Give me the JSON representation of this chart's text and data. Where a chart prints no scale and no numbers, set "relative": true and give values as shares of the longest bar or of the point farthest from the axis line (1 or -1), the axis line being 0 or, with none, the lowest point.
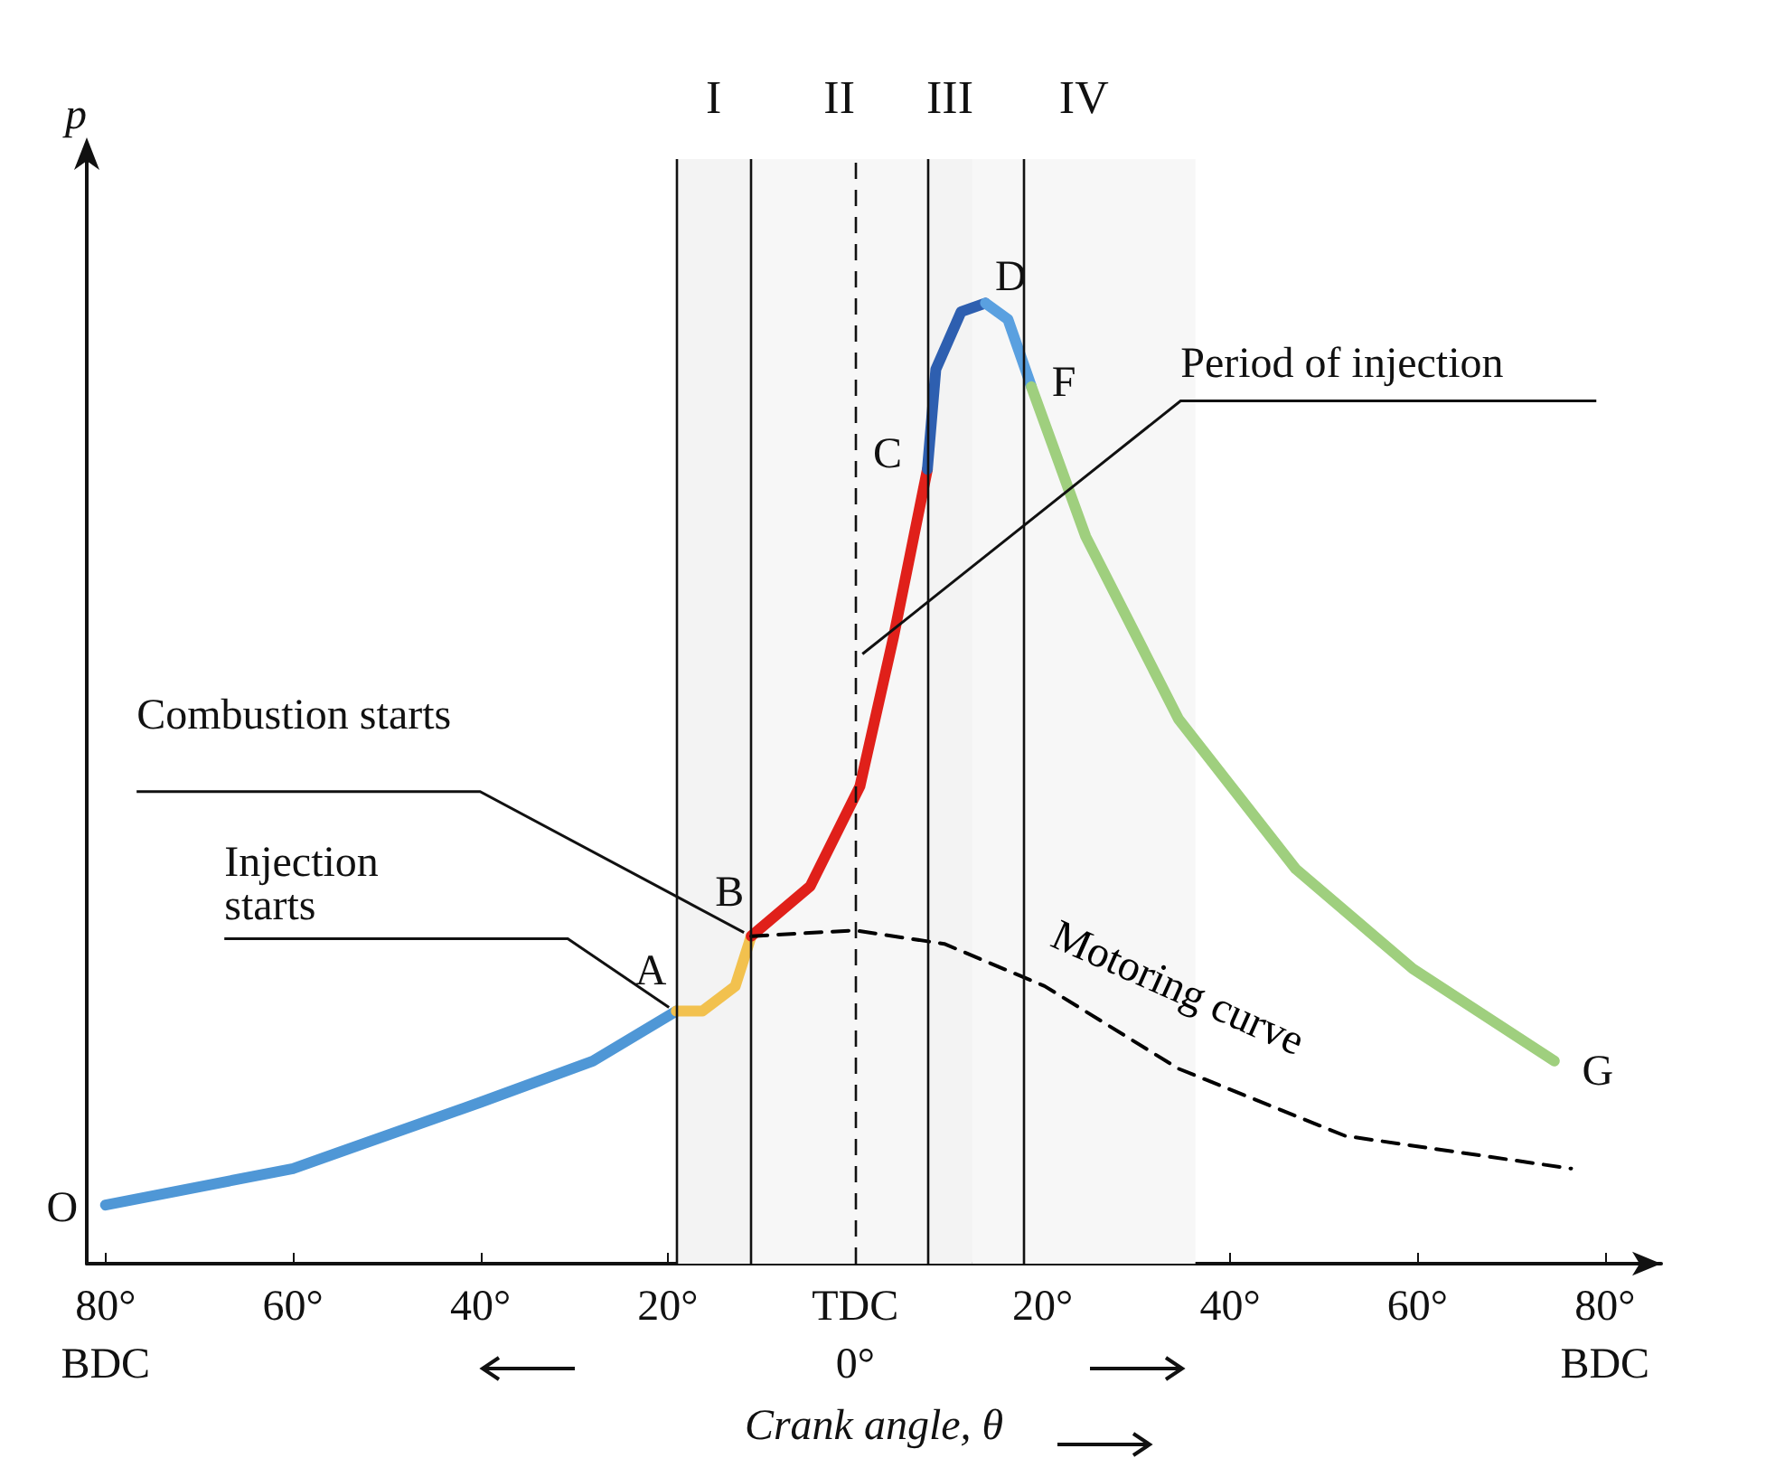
{
  "chart_data": {
    "type": "line",
    "relative": true,
    "xlabel": "Crank angle, θ",
    "ylabel": "p",
    "legend": false,
    "grid": false,
    "marker": "none",
    "xlim": [
      -82,
      86
    ],
    "xticks": [
      {
        "value": -80,
        "label": "80°\nBDC"
      },
      {
        "value": -60,
        "label": "60°"
      },
      {
        "value": -40,
        "label": "40°"
      },
      {
        "value": -20,
        "label": "20°"
      },
      {
        "value": 0,
        "label": "TDC\n0°"
      },
      {
        "value": 20,
        "label": "20°"
      },
      {
        "value": 40,
        "label": "40°"
      },
      {
        "value": 60,
        "label": "60°"
      },
      {
        "value": 80,
        "label": "80°\nBDC"
      }
    ],
    "series": [
      {
        "color": "#4f97d6",
        "x": [
          -80,
          -60,
          -40,
          -28,
          -19.1
        ],
        "values": [
          0.061,
          0.099,
          0.168,
          0.211,
          0.263
        ]
      },
      {
        "color": "#f2c14e",
        "x": [
          -19.1,
          -16.3,
          -12.8,
          -11.1
        ],
        "values": [
          0.263,
          0.263,
          0.289,
          0.341
        ]
      },
      {
        "color": "#e0201a",
        "x": [
          -11.1,
          -4.8,
          0.5,
          4.1,
          7.7
        ],
        "values": [
          0.341,
          0.393,
          0.497,
          0.653,
          0.827
        ]
      },
      {
        "color": "#2e5fb0",
        "x": [
          7.7,
          8.6,
          11.3,
          13.9
        ],
        "values": [
          0.827,
          0.931,
          0.991,
          1
        ]
      },
      {
        "color": "#5aa0e0",
        "x": [
          13.9,
          16.3,
          18.8
        ],
        "values": [
          1,
          0.983,
          0.913
        ]
      },
      {
        "color": "#9fcf7e",
        "x": [
          18.8,
          24.6,
          34.5,
          47,
          59.5,
          74.6
        ],
        "values": [
          0.913,
          0.757,
          0.567,
          0.411,
          0.307,
          0.211
        ]
      },
      {
        "name": "Motoring curve",
        "color": "#000000",
        "line_style": "dashed",
        "x": [
          -11.1,
          0,
          9.5,
          20.2,
          34.5,
          52.3,
          76.4
        ],
        "values": [
          0.341,
          0.347,
          0.333,
          0.289,
          0.203,
          0.133,
          0.099
        ]
      }
    ],
    "bands": [
      {
        "axis": "x",
        "from": -19.1,
        "to": -11.1,
        "label": "I",
        "color": "#f3f3f3"
      },
      {
        "axis": "x",
        "from": -11.1,
        "to": 7.7,
        "label": "II",
        "color": "#f7f7f7"
      },
      {
        "axis": "x",
        "from": 7.7,
        "to": 12.5,
        "label": "III",
        "color": "#f3f3f3"
      },
      {
        "axis": "x",
        "from": 12.5,
        "to": 36.3,
        "label": "IV",
        "color": "#f7f7f7"
      }
    ],
    "ref_lines": [
      {
        "axis": "x",
        "value": -19.1
      },
      {
        "axis": "x",
        "value": -11.1
      },
      {
        "axis": "x",
        "value": 7.7
      },
      {
        "axis": "x",
        "value": 0,
        "line_style": "dashed"
      },
      {
        "axis": "x",
        "value": 18
      }
    ],
    "annotations": [
      {
        "text": "A",
        "x": -19.1,
        "y": 0.263
      },
      {
        "text": "B",
        "x": -11.1,
        "y": 0.341
      },
      {
        "text": "C",
        "x": 7.7,
        "y": 0.827
      },
      {
        "text": "D",
        "x": 13.9,
        "y": 1
      },
      {
        "text": "F",
        "x": 18.8,
        "y": 0.913
      },
      {
        "text": "G",
        "x": 74.6,
        "y": 0.211
      },
      {
        "text": "O",
        "x": -80,
        "y": 0.061
      },
      {
        "text": "Injection starts",
        "x": -19.1,
        "y": 0.263
      },
      {
        "text": "Combustion starts",
        "x": -11.1,
        "y": 0.341
      },
      {
        "text": "Period of injection",
        "x": 0,
        "y": 0.631
      }
    ]
  }
}
